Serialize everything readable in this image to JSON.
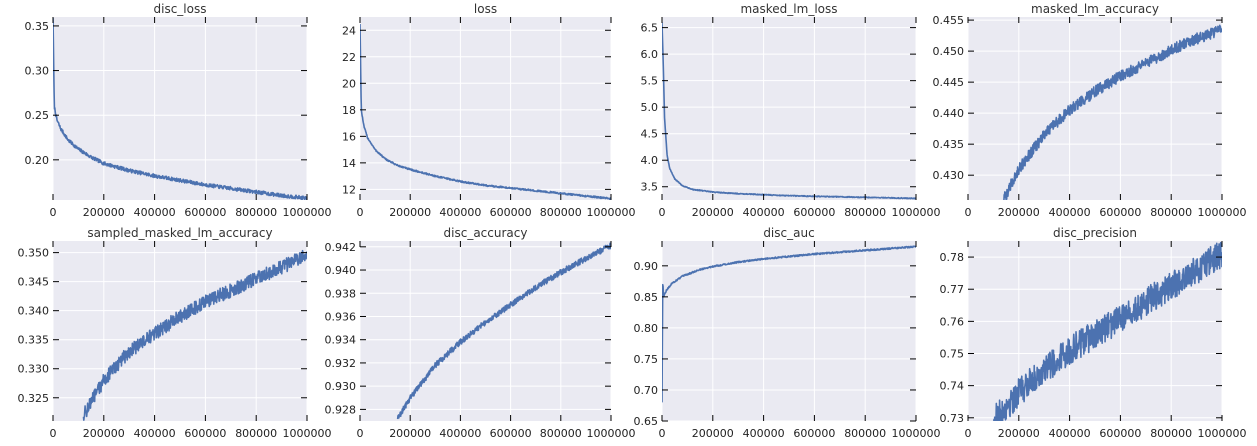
{
  "chart_data": [
    {
      "type": "line",
      "title": "disc_loss",
      "xlim": [
        0,
        1000000
      ],
      "ylim": [
        0.155,
        0.36
      ],
      "xticks": [
        0,
        200000,
        400000,
        600000,
        800000,
        1000000
      ],
      "yticks": [
        0.2,
        0.25,
        0.3,
        0.35
      ],
      "ytick_labels": [
        "0.20",
        "0.25",
        "0.30",
        "0.35"
      ],
      "grid": true,
      "series": [
        {
          "x": [
            0,
            5000,
            15000,
            30000,
            60000,
            100000,
            150000,
            200000,
            300000,
            400000,
            500000,
            600000,
            700000,
            800000,
            900000,
            1000000
          ],
          "y": [
            0.36,
            0.26,
            0.245,
            0.235,
            0.222,
            0.212,
            0.203,
            0.196,
            0.188,
            0.182,
            0.177,
            0.172,
            0.168,
            0.164,
            0.16,
            0.157
          ],
          "noise": 0.002
        }
      ]
    },
    {
      "type": "line",
      "title": "loss",
      "xlim": [
        0,
        1000000
      ],
      "ylim": [
        11.2,
        25
      ],
      "xticks": [
        0,
        200000,
        400000,
        600000,
        800000,
        1000000
      ],
      "yticks": [
        12,
        14,
        16,
        18,
        20,
        22,
        24
      ],
      "ytick_labels": [
        "12",
        "14",
        "16",
        "18",
        "20",
        "22",
        "24"
      ],
      "grid": true,
      "series": [
        {
          "x": [
            0,
            5000,
            15000,
            30000,
            60000,
            100000,
            150000,
            200000,
            300000,
            400000,
            500000,
            600000,
            700000,
            800000,
            900000,
            1000000
          ],
          "y": [
            24.5,
            18.0,
            16.8,
            15.9,
            15.0,
            14.3,
            13.8,
            13.5,
            13.0,
            12.6,
            12.3,
            12.1,
            11.9,
            11.7,
            11.5,
            11.3
          ],
          "noise": 0.06
        }
      ]
    },
    {
      "type": "line",
      "title": "masked_lm_loss",
      "xlim": [
        0,
        1000000
      ],
      "ylim": [
        3.25,
        6.7
      ],
      "xticks": [
        0,
        200000,
        400000,
        600000,
        800000,
        1000000
      ],
      "yticks": [
        3.5,
        4.0,
        4.5,
        5.0,
        5.5,
        6.0,
        6.5
      ],
      "ytick_labels": [
        "3.5",
        "4.0",
        "4.5",
        "5.0",
        "5.5",
        "6.0",
        "6.5"
      ],
      "grid": true,
      "series": [
        {
          "x": [
            0,
            5000,
            10000,
            20000,
            30000,
            50000,
            80000,
            120000,
            200000,
            300000,
            400000,
            500000,
            600000,
            700000,
            800000,
            900000,
            1000000
          ],
          "y": [
            6.6,
            5.8,
            4.8,
            4.1,
            3.85,
            3.65,
            3.52,
            3.45,
            3.4,
            3.37,
            3.35,
            3.33,
            3.32,
            3.31,
            3.3,
            3.29,
            3.28
          ],
          "noise": 0.008
        }
      ]
    },
    {
      "type": "line",
      "title": "masked_lm_accuracy",
      "xlim": [
        0,
        1000000
      ],
      "ylim": [
        0.426,
        0.4555
      ],
      "xticks": [
        0,
        200000,
        400000,
        600000,
        800000,
        1000000
      ],
      "yticks": [
        0.43,
        0.435,
        0.44,
        0.445,
        0.45,
        0.455
      ],
      "ytick_labels": [
        "0.430",
        "0.435",
        "0.440",
        "0.445",
        "0.450",
        "0.455"
      ],
      "grid": true,
      "series": [
        {
          "x": [
            140000,
            200000,
            300000,
            400000,
            500000,
            600000,
            700000,
            800000,
            900000,
            1000000
          ],
          "y": [
            0.426,
            0.431,
            0.4365,
            0.4405,
            0.4435,
            0.446,
            0.448,
            0.4502,
            0.452,
            0.4535
          ],
          "noise": 0.0009
        }
      ]
    },
    {
      "type": "line",
      "title": "sampled_masked_lm_accuracy",
      "xlim": [
        0,
        1000000
      ],
      "ylim": [
        0.321,
        0.352
      ],
      "xticks": [
        0,
        200000,
        400000,
        600000,
        800000,
        1000000
      ],
      "yticks": [
        0.325,
        0.33,
        0.335,
        0.34,
        0.345,
        0.35
      ],
      "ytick_labels": [
        "0.325",
        "0.330",
        "0.335",
        "0.340",
        "0.345",
        "0.350"
      ],
      "grid": true,
      "series": [
        {
          "x": [
            120000,
            200000,
            300000,
            400000,
            500000,
            600000,
            700000,
            800000,
            900000,
            1000000
          ],
          "y": [
            0.322,
            0.328,
            0.333,
            0.336,
            0.339,
            0.3415,
            0.3435,
            0.3455,
            0.3475,
            0.3495
          ],
          "noise": 0.0012
        }
      ]
    },
    {
      "type": "line",
      "title": "disc_accuracy",
      "xlim": [
        0,
        1000000
      ],
      "ylim": [
        0.927,
        0.9425
      ],
      "xticks": [
        0,
        200000,
        400000,
        600000,
        800000,
        1000000
      ],
      "yticks": [
        0.928,
        0.93,
        0.932,
        0.934,
        0.936,
        0.938,
        0.94,
        0.942
      ],
      "ytick_labels": [
        "0.928",
        "0.930",
        "0.932",
        "0.934",
        "0.936",
        "0.938",
        "0.940",
        "0.942"
      ],
      "grid": true,
      "series": [
        {
          "x": [
            150000,
            200000,
            300000,
            400000,
            500000,
            600000,
            700000,
            800000,
            900000,
            1000000
          ],
          "y": [
            0.9272,
            0.929,
            0.9318,
            0.9338,
            0.9355,
            0.937,
            0.9385,
            0.9398,
            0.941,
            0.9421
          ],
          "noise": 0.00025
        }
      ]
    },
    {
      "type": "line",
      "title": "disc_auc",
      "xlim": [
        0,
        1000000
      ],
      "ylim": [
        0.65,
        0.94
      ],
      "xticks": [
        0,
        200000,
        400000,
        600000,
        800000,
        1000000
      ],
      "yticks": [
        0.65,
        0.7,
        0.75,
        0.8,
        0.85,
        0.9
      ],
      "ytick_labels": [
        "0.65",
        "0.70",
        "0.75",
        "0.80",
        "0.85",
        "0.90"
      ],
      "grid": true,
      "series": [
        {
          "x": [
            0,
            3000,
            6000,
            10000,
            20000,
            40000,
            80000,
            150000,
            200000,
            300000,
            400000,
            500000,
            600000,
            700000,
            800000,
            900000,
            1000000
          ],
          "y": [
            0.68,
            0.88,
            0.85,
            0.855,
            0.862,
            0.872,
            0.883,
            0.894,
            0.899,
            0.906,
            0.911,
            0.915,
            0.919,
            0.922,
            0.925,
            0.928,
            0.931
          ],
          "noise": 0.0012
        }
      ]
    },
    {
      "type": "line",
      "title": "disc_precision",
      "xlim": [
        0,
        1000000
      ],
      "ylim": [
        0.729,
        0.785
      ],
      "xticks": [
        0,
        200000,
        400000,
        600000,
        800000,
        1000000
      ],
      "yticks": [
        0.73,
        0.74,
        0.75,
        0.76,
        0.77,
        0.78
      ],
      "ytick_labels": [
        "0.73",
        "0.74",
        "0.75",
        "0.76",
        "0.77",
        "0.78"
      ],
      "grid": true,
      "series": [
        {
          "x": [
            100000,
            200000,
            300000,
            400000,
            500000,
            600000,
            700000,
            800000,
            900000,
            1000000
          ],
          "y": [
            0.729,
            0.738,
            0.745,
            0.751,
            0.756,
            0.761,
            0.766,
            0.771,
            0.776,
            0.781
          ],
          "noise": 0.0045
        }
      ]
    }
  ],
  "colors": {
    "line": "#4c72b0",
    "plot_bg": "#eaeaf2",
    "grid": "#ffffff",
    "spine": "#000000"
  }
}
